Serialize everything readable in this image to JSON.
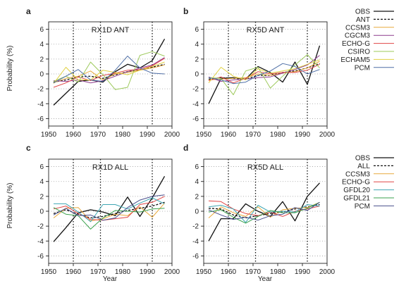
{
  "figure": {
    "ylabel": "Probability (%)",
    "xlabel": "Year"
  },
  "chart_data": [
    {
      "letter": "a",
      "type": "line",
      "title": "RX1D ANT",
      "xlabel": "",
      "ylabel": "Probability (%)",
      "xlim": [
        1950,
        2000
      ],
      "ylim": [
        -7,
        7
      ],
      "xticks": [
        1950,
        1960,
        1970,
        1980,
        1990,
        2000
      ],
      "yticks": [
        6,
        4,
        2,
        0,
        -2,
        -4,
        -6
      ],
      "grid": "dotted horizontal",
      "vlines": [
        1960,
        1971,
        1992
      ],
      "x": [
        1952,
        1957,
        1962,
        1967,
        1972,
        1977,
        1982,
        1987,
        1992,
        1997
      ],
      "series": [
        {
          "name": "OBS",
          "color": "#111111",
          "dash": "solid",
          "width": 1.3,
          "values": [
            -4.2,
            -2.6,
            -1.0,
            -0.8,
            -1.1,
            0.3,
            1.3,
            0.8,
            1.8,
            4.7
          ]
        },
        {
          "name": "ANT",
          "color": "#111111",
          "dash": "dashed",
          "width": 1.3,
          "values": [
            -1.1,
            -0.8,
            -0.4,
            -0.3,
            -0.6,
            -0.1,
            0.3,
            0.6,
            0.9,
            1.3
          ]
        },
        {
          "name": "CCSM3",
          "color": "#e8a93c",
          "dash": "solid",
          "width": 1,
          "values": [
            -1.2,
            -0.6,
            -0.3,
            0.4,
            -0.8,
            0.0,
            0.2,
            0.5,
            0.8,
            1.2
          ]
        },
        {
          "name": "CGCM3",
          "color": "#8e3b8e",
          "dash": "solid",
          "width": 1,
          "values": [
            -0.9,
            -1.0,
            -0.8,
            -1.2,
            -0.9,
            -0.3,
            0.3,
            0.8,
            1.2,
            2.2
          ]
        },
        {
          "name": "ECHO-G",
          "color": "#e04646",
          "dash": "solid",
          "width": 1,
          "values": [
            -1.8,
            -1.2,
            -0.4,
            -0.9,
            -0.2,
            0.1,
            0.5,
            0.6,
            1.1,
            2.1
          ]
        },
        {
          "name": "CSIRO",
          "color": "#9cc95a",
          "dash": "solid",
          "width": 1,
          "values": [
            -1.0,
            -0.3,
            -1.1,
            1.6,
            -0.1,
            -2.1,
            -1.8,
            2.5,
            3.0,
            2.4
          ]
        },
        {
          "name": "ECHAM5",
          "color": "#e0d040",
          "dash": "solid",
          "width": 1,
          "values": [
            -1.3,
            0.9,
            -0.8,
            -0.8,
            0.5,
            0.2,
            -0.1,
            0.5,
            1.0,
            1.6
          ]
        },
        {
          "name": "PCM",
          "color": "#4f6fa6",
          "dash": "solid",
          "width": 1,
          "values": [
            -1.2,
            -0.3,
            0.6,
            -0.8,
            -1.0,
            0.5,
            2.4,
            0.8,
            0.1,
            0.0
          ]
        }
      ]
    },
    {
      "letter": "b",
      "type": "line",
      "title": "RX5D ANT",
      "xlabel": "",
      "ylabel": "",
      "xlim": [
        1950,
        2000
      ],
      "ylim": [
        -7,
        7
      ],
      "xticks": [
        1950,
        1960,
        1970,
        1980,
        1990,
        2000
      ],
      "yticks": [
        6,
        4,
        2,
        0,
        -2,
        -4,
        -6
      ],
      "grid": "dotted horizontal",
      "vlines": [
        1960,
        1971,
        1992
      ],
      "x": [
        1952,
        1957,
        1962,
        1967,
        1972,
        1977,
        1982,
        1987,
        1992,
        1997
      ],
      "series": [
        {
          "name": "OBS",
          "color": "#111111",
          "dash": "solid",
          "width": 1.3,
          "values": [
            -4.0,
            -0.6,
            -0.5,
            -0.7,
            1.0,
            0.2,
            -1.1,
            1.6,
            -1.4,
            3.8
          ]
        },
        {
          "name": "ANT",
          "color": "#111111",
          "dash": "dashed",
          "width": 1.3,
          "values": [
            -0.7,
            -0.5,
            -0.6,
            -0.7,
            -0.2,
            -0.2,
            0.2,
            0.4,
            0.8,
            1.4
          ]
        },
        {
          "name": "CCSM3",
          "color": "#e8a93c",
          "dash": "solid",
          "width": 1,
          "values": [
            -0.8,
            -0.7,
            -0.6,
            -0.5,
            0.0,
            -0.2,
            0.1,
            0.3,
            0.8,
            1.7
          ]
        },
        {
          "name": "CGCM3",
          "color": "#8e3b8e",
          "dash": "solid",
          "width": 1,
          "values": [
            -0.4,
            -1.0,
            -0.8,
            -0.7,
            -0.5,
            -0.4,
            0.1,
            0.6,
            1.2,
            2.5
          ]
        },
        {
          "name": "ECHO-G",
          "color": "#e04646",
          "dash": "solid",
          "width": 1,
          "values": [
            -0.9,
            -0.4,
            -1.2,
            -0.6,
            0.3,
            0.0,
            0.2,
            0.2,
            0.5,
            1.3
          ]
        },
        {
          "name": "CSIRO",
          "color": "#9cc95a",
          "dash": "solid",
          "width": 1,
          "values": [
            -0.5,
            -0.6,
            -2.8,
            0.4,
            0.9,
            -1.9,
            -0.3,
            1.2,
            2.6,
            0.8
          ]
        },
        {
          "name": "ECHAM5",
          "color": "#e0d040",
          "dash": "solid",
          "width": 1,
          "values": [
            -1.2,
            0.9,
            -0.3,
            -0.8,
            0.7,
            0.1,
            0.4,
            0.7,
            1.3,
            1.9
          ]
        },
        {
          "name": "PCM",
          "color": "#4f6fa6",
          "dash": "solid",
          "width": 1,
          "values": [
            -0.5,
            -0.8,
            -1.3,
            -1.1,
            -0.2,
            0.4,
            1.4,
            1.0,
            0.0,
            0.6
          ]
        }
      ]
    },
    {
      "letter": "c",
      "type": "line",
      "title": "RX1D ALL",
      "xlabel": "Year",
      "ylabel": "Probability (%)",
      "xlim": [
        1950,
        2000
      ],
      "ylim": [
        -7,
        7
      ],
      "xticks": [
        1950,
        1960,
        1970,
        1980,
        1990,
        2000
      ],
      "yticks": [
        6,
        4,
        2,
        0,
        -2,
        -4,
        -6
      ],
      "grid": "dotted horizontal",
      "vlines": [
        1960,
        1971,
        1992
      ],
      "x": [
        1952,
        1957,
        1962,
        1967,
        1972,
        1977,
        1982,
        1987,
        1992,
        1997
      ],
      "series": [
        {
          "name": "OBS",
          "color": "#111111",
          "dash": "solid",
          "width": 1.3,
          "values": [
            -4.1,
            -2.2,
            -0.2,
            0.2,
            -0.1,
            -0.6,
            1.9,
            -0.7,
            1.8,
            4.7
          ]
        },
        {
          "name": "ALL",
          "color": "#111111",
          "dash": "dashed",
          "width": 1.3,
          "values": [
            -0.3,
            0.2,
            -0.4,
            -0.9,
            -0.7,
            -0.3,
            0.1,
            0.4,
            0.7,
            1.2
          ]
        },
        {
          "name": "CCSM3",
          "color": "#e8a93c",
          "dash": "solid",
          "width": 1,
          "values": [
            -0.9,
            0.4,
            0.5,
            -1.3,
            -1.0,
            -0.4,
            -0.6,
            0.6,
            -0.8,
            1.1
          ]
        },
        {
          "name": "ECHO-G",
          "color": "#e04646",
          "dash": "solid",
          "width": 1,
          "values": [
            0.3,
            0.7,
            -0.3,
            -1.1,
            -1.2,
            -1.0,
            -0.8,
            0.9,
            1.2,
            2.0
          ]
        },
        {
          "name": "GFDL20",
          "color": "#3fa6b3",
          "dash": "solid",
          "width": 1,
          "values": [
            1.0,
            1.0,
            -0.1,
            -1.4,
            0.9,
            0.9,
            0.3,
            1.1,
            1.8,
            1.0
          ]
        },
        {
          "name": "GFDL21",
          "color": "#3aa24c",
          "dash": "solid",
          "width": 1,
          "values": [
            0.5,
            -0.4,
            -0.6,
            -2.4,
            -0.9,
            0.1,
            0.0,
            -0.1,
            0.3,
            0.4
          ]
        },
        {
          "name": "PCM",
          "color": "#4a4f8c",
          "dash": "solid",
          "width": 1,
          "values": [
            -0.5,
            0.4,
            -0.6,
            -0.5,
            -1.2,
            -0.9,
            0.5,
            1.5,
            2.0,
            2.2
          ]
        }
      ]
    },
    {
      "letter": "d",
      "type": "line",
      "title": "RX5D ALL",
      "xlabel": "Year",
      "ylabel": "",
      "xlim": [
        1950,
        2000
      ],
      "ylim": [
        -7,
        7
      ],
      "xticks": [
        1950,
        1960,
        1970,
        1980,
        1990,
        2000
      ],
      "yticks": [
        6,
        4,
        2,
        0,
        -2,
        -4,
        -6
      ],
      "grid": "dotted horizontal",
      "vlines": [
        1960,
        1971,
        1992
      ],
      "x": [
        1952,
        1957,
        1962,
        1967,
        1972,
        1977,
        1982,
        1987,
        1992,
        1997
      ],
      "series": [
        {
          "name": "OBS",
          "color": "#111111",
          "dash": "solid",
          "width": 1.3,
          "values": [
            -4.0,
            -1.0,
            -1.0,
            1.0,
            0.0,
            -0.7,
            1.3,
            -1.3,
            2.0,
            3.8
          ]
        },
        {
          "name": "ALL",
          "color": "#111111",
          "dash": "dashed",
          "width": 1.3,
          "values": [
            0.4,
            0.3,
            -0.5,
            -0.9,
            -0.6,
            -0.3,
            -0.1,
            0.3,
            0.6,
            0.9
          ]
        },
        {
          "name": "CCSM3",
          "color": "#e8a93c",
          "dash": "solid",
          "width": 1,
          "values": [
            -0.9,
            0.6,
            -0.2,
            -0.7,
            0.6,
            -0.8,
            0.2,
            0.4,
            0.5,
            1.2
          ]
        },
        {
          "name": "ECHO-G",
          "color": "#e04646",
          "dash": "solid",
          "width": 1,
          "values": [
            1.4,
            1.3,
            0.3,
            -0.3,
            -0.6,
            -0.1,
            -0.7,
            0.0,
            0.3,
            0.7
          ]
        },
        {
          "name": "GFDL20",
          "color": "#3fa6b3",
          "dash": "solid",
          "width": 1,
          "values": [
            0.6,
            0.8,
            0.3,
            -1.5,
            0.8,
            -0.1,
            0.0,
            -0.1,
            0.9,
            0.7
          ]
        },
        {
          "name": "GFDL21",
          "color": "#3aa24c",
          "dash": "solid",
          "width": 1,
          "values": [
            -0.1,
            0.2,
            -0.8,
            -1.6,
            -0.7,
            0.1,
            -0.2,
            -0.2,
            0.4,
            1.2
          ]
        },
        {
          "name": "PCM",
          "color": "#4a4f8c",
          "dash": "solid",
          "width": 1,
          "values": [
            0.2,
            -0.5,
            -1.1,
            -0.8,
            -1.2,
            -0.6,
            -0.4,
            0.5,
            0.1,
            1.2
          ]
        }
      ]
    }
  ]
}
